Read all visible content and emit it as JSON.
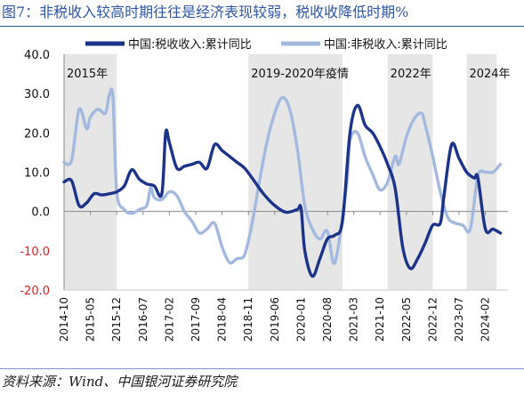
{
  "header": {
    "title": "图7：非税收入较高时期往往是经济表现较弱，税收收降低时期%"
  },
  "footer": {
    "source": "资料来源：Wind、中国银河证券研究院"
  },
  "chart_data": {
    "type": "line",
    "title": "图7：非税收入较高时期往往是经济表现较弱，税收收降低时期%",
    "xlabel": "",
    "ylabel": "",
    "ylim": [
      -20,
      40
    ],
    "yticks": [
      "40.0",
      "30.0",
      "20.0",
      "10.0",
      "0.0",
      "-10.0",
      "-20.0"
    ],
    "xticks": [
      "2014-10",
      "2015-05",
      "2015-12",
      "2016-07",
      "2017-02",
      "2017-09",
      "2018-04",
      "2018-11",
      "2019-06",
      "2020-01",
      "2020-08",
      "2021-03",
      "2021-10",
      "2022-05",
      "2022-12",
      "2023-07",
      "2024-02"
    ],
    "legend": {
      "placement": "top"
    },
    "grid": false,
    "colors": {
      "tax": "#1b3389",
      "nontax": "#a3b9e0",
      "shade": "#e6e6e6",
      "axis": "#888888",
      "neg": "#e02020"
    },
    "shaded_regions": [
      {
        "label": "2015年",
        "start": "2014-10",
        "end": "2015-12"
      },
      {
        "label": "2019-2020年疫情",
        "start": "2018-11",
        "end": "2020-12"
      },
      {
        "label": "2022年",
        "start": "2021-12",
        "end": "2022-12"
      },
      {
        "label": "2024年",
        "start": "2023-09",
        "end": "2024-05"
      }
    ],
    "series": [
      {
        "name": "中国:税收收入:累计同比",
        "points": [
          [
            "2014-10",
            7.5
          ],
          [
            "2014-12",
            7.8
          ],
          [
            "2015-02",
            1.5
          ],
          [
            "2015-04",
            2.2
          ],
          [
            "2015-06",
            4.5
          ],
          [
            "2015-08",
            4.2
          ],
          [
            "2015-10",
            4.5
          ],
          [
            "2015-12",
            5.0
          ],
          [
            "2016-02",
            6.5
          ],
          [
            "2016-04",
            10.6
          ],
          [
            "2016-06",
            8.2
          ],
          [
            "2016-08",
            7.0
          ],
          [
            "2016-10",
            6.5
          ],
          [
            "2016-12",
            4.5
          ],
          [
            "2017-01",
            20.0
          ],
          [
            "2017-02",
            17.5
          ],
          [
            "2017-04",
            11.0
          ],
          [
            "2017-06",
            11.5
          ],
          [
            "2017-08",
            12.0
          ],
          [
            "2017-10",
            12.5
          ],
          [
            "2017-12",
            11.0
          ],
          [
            "2018-02",
            17.0
          ],
          [
            "2018-04",
            15.5
          ],
          [
            "2018-06",
            14.0
          ],
          [
            "2018-08",
            12.5
          ],
          [
            "2018-10",
            11.0
          ],
          [
            "2018-12",
            8.5
          ],
          [
            "2019-03",
            4.5
          ],
          [
            "2019-06",
            1.5
          ],
          [
            "2019-09",
            -0.2
          ],
          [
            "2019-12",
            0.5
          ],
          [
            "2020-01",
            0.8
          ],
          [
            "2020-02",
            -10.0
          ],
          [
            "2020-04",
            -16.5
          ],
          [
            "2020-06",
            -12.0
          ],
          [
            "2020-08",
            -7.0
          ],
          [
            "2020-10",
            -6.0
          ],
          [
            "2020-12",
            -2.5
          ],
          [
            "2021-02",
            20.0
          ],
          [
            "2021-04",
            27.0
          ],
          [
            "2021-06",
            22.0
          ],
          [
            "2021-08",
            20.0
          ],
          [
            "2021-10",
            16.5
          ],
          [
            "2021-12",
            12.0
          ],
          [
            "2022-02",
            6.0
          ],
          [
            "2022-04",
            -9.0
          ],
          [
            "2022-06",
            -14.5
          ],
          [
            "2022-08",
            -12.0
          ],
          [
            "2022-10",
            -8.0
          ],
          [
            "2022-12",
            -3.5
          ],
          [
            "2023-02",
            -3.0
          ],
          [
            "2023-03",
            4.0
          ],
          [
            "2023-05",
            17.0
          ],
          [
            "2023-07",
            13.5
          ],
          [
            "2023-09",
            10.0
          ],
          [
            "2023-11",
            8.5
          ],
          [
            "2023-12",
            8.5
          ],
          [
            "2024-02",
            -4.5
          ],
          [
            "2024-04",
            -4.5
          ],
          [
            "2024-06",
            -5.5
          ]
        ]
      },
      {
        "name": "中国:非税收入:累计同比",
        "points": [
          [
            "2014-10",
            12.5
          ],
          [
            "2014-12",
            13.0
          ],
          [
            "2015-02",
            26.0
          ],
          [
            "2015-04",
            21.0
          ],
          [
            "2015-05",
            24.0
          ],
          [
            "2015-07",
            26.0
          ],
          [
            "2015-09",
            25.0
          ],
          [
            "2015-10",
            29.5
          ],
          [
            "2015-11",
            29.0
          ],
          [
            "2015-12",
            5.0
          ],
          [
            "2016-02",
            0.5
          ],
          [
            "2016-04",
            -0.5
          ],
          [
            "2016-06",
            0.5
          ],
          [
            "2016-08",
            1.5
          ],
          [
            "2016-09",
            6.0
          ],
          [
            "2016-10",
            3.5
          ],
          [
            "2016-12",
            3.0
          ],
          [
            "2017-02",
            5.0
          ],
          [
            "2017-04",
            4.0
          ],
          [
            "2017-06",
            0.0
          ],
          [
            "2017-08",
            -2.5
          ],
          [
            "2017-10",
            -5.5
          ],
          [
            "2017-12",
            -4.5
          ],
          [
            "2018-02",
            -3.0
          ],
          [
            "2018-04",
            -9.0
          ],
          [
            "2018-06",
            -13.0
          ],
          [
            "2018-08",
            -12.0
          ],
          [
            "2018-10",
            -11.0
          ],
          [
            "2018-12",
            -3.0
          ],
          [
            "2019-02",
            8.0
          ],
          [
            "2019-04",
            18.0
          ],
          [
            "2019-06",
            25.0
          ],
          [
            "2019-08",
            29.0
          ],
          [
            "2019-10",
            26.0
          ],
          [
            "2019-12",
            16.0
          ],
          [
            "2020-02",
            1.5
          ],
          [
            "2020-04",
            -4.5
          ],
          [
            "2020-06",
            -7.0
          ],
          [
            "2020-08",
            -5.0
          ],
          [
            "2020-10",
            -13.0
          ],
          [
            "2021-01",
            6.0
          ],
          [
            "2021-02",
            18.0
          ],
          [
            "2021-04",
            20.0
          ],
          [
            "2021-06",
            14.0
          ],
          [
            "2021-08",
            9.5
          ],
          [
            "2021-10",
            5.5
          ],
          [
            "2021-12",
            7.5
          ],
          [
            "2022-02",
            14.0
          ],
          [
            "2022-03",
            12.0
          ],
          [
            "2022-05",
            19.0
          ],
          [
            "2022-07",
            23.5
          ],
          [
            "2022-09",
            25.0
          ],
          [
            "2022-10",
            22.0
          ],
          [
            "2022-12",
            14.0
          ],
          [
            "2023-02",
            5.0
          ],
          [
            "2023-04",
            -1.5
          ],
          [
            "2023-06",
            -3.0
          ],
          [
            "2023-08",
            -3.5
          ],
          [
            "2023-10",
            -4.5
          ],
          [
            "2023-12",
            9.0
          ],
          [
            "2024-02",
            10.0
          ],
          [
            "2024-04",
            10.0
          ],
          [
            "2024-06",
            12.0
          ]
        ]
      }
    ]
  }
}
